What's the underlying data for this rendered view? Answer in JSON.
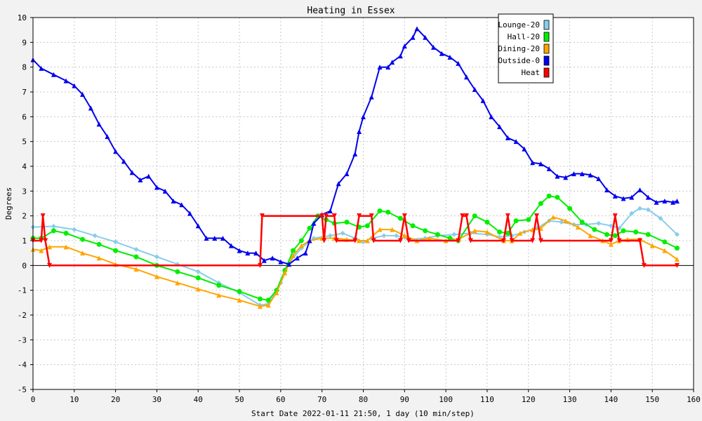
{
  "chart_data": {
    "type": "line",
    "title": "Heating in Essex",
    "xlabel": "Start Date 2022-01-11 21:50, 1 day (10 min/step)",
    "ylabel": "Degrees",
    "xlim": [
      0,
      160
    ],
    "ylim": [
      -5,
      10
    ],
    "x_ticks": [
      0,
      10,
      20,
      30,
      40,
      50,
      60,
      70,
      80,
      90,
      100,
      110,
      120,
      130,
      140,
      150,
      160
    ],
    "y_ticks": [
      -5,
      -4,
      -3,
      -2,
      -1,
      0,
      1,
      2,
      3,
      4,
      5,
      6,
      7,
      8,
      9,
      10
    ],
    "grid": true,
    "legend_position": "top-right",
    "series": [
      {
        "name": "Lounge-20",
        "color": "#87ceeb",
        "marker": "diamond",
        "points": [
          [
            0,
            1.55
          ],
          [
            5,
            1.58
          ],
          [
            10,
            1.45
          ],
          [
            15,
            1.2
          ],
          [
            20,
            0.95
          ],
          [
            25,
            0.65
          ],
          [
            30,
            0.35
          ],
          [
            35,
            0.05
          ],
          [
            40,
            -0.25
          ],
          [
            45,
            -0.7
          ],
          [
            50,
            -1.1
          ],
          [
            55,
            -1.6
          ],
          [
            57,
            -1.55
          ],
          [
            60,
            -0.7
          ],
          [
            62,
            0.1
          ],
          [
            65,
            0.7
          ],
          [
            68,
            1.1
          ],
          [
            72,
            1.2
          ],
          [
            75,
            1.3
          ],
          [
            78,
            1.1
          ],
          [
            80,
            0.95
          ],
          [
            82,
            1.1
          ],
          [
            85,
            1.2
          ],
          [
            88,
            1.2
          ],
          [
            91,
            1.05
          ],
          [
            95,
            1.1
          ],
          [
            98,
            1.2
          ],
          [
            102,
            1.25
          ],
          [
            106,
            1.3
          ],
          [
            110,
            1.25
          ],
          [
            113,
            1.15
          ],
          [
            116,
            1.2
          ],
          [
            119,
            1.35
          ],
          [
            122,
            1.5
          ],
          [
            125,
            1.8
          ],
          [
            128,
            1.75
          ],
          [
            131,
            1.65
          ],
          [
            134,
            1.65
          ],
          [
            137,
            1.7
          ],
          [
            140,
            1.6
          ],
          [
            142,
            1.5
          ],
          [
            145,
            2.1
          ],
          [
            147,
            2.3
          ],
          [
            149,
            2.25
          ],
          [
            152,
            1.9
          ],
          [
            156,
            1.25
          ]
        ]
      },
      {
        "name": "Hall-20",
        "color": "#00ee00",
        "marker": "circle",
        "points": [
          [
            0,
            1.1
          ],
          [
            2,
            1.1
          ],
          [
            5,
            1.4
          ],
          [
            8,
            1.3
          ],
          [
            12,
            1.05
          ],
          [
            16,
            0.85
          ],
          [
            20,
            0.6
          ],
          [
            25,
            0.35
          ],
          [
            30,
            0.0
          ],
          [
            35,
            -0.25
          ],
          [
            40,
            -0.5
          ],
          [
            45,
            -0.8
          ],
          [
            50,
            -1.05
          ],
          [
            55,
            -1.35
          ],
          [
            57,
            -1.4
          ],
          [
            59,
            -1.0
          ],
          [
            61,
            -0.2
          ],
          [
            63,
            0.6
          ],
          [
            65,
            1.0
          ],
          [
            67,
            1.5
          ],
          [
            69,
            2.0
          ],
          [
            71,
            1.85
          ],
          [
            73,
            1.7
          ],
          [
            76,
            1.75
          ],
          [
            79,
            1.55
          ],
          [
            81,
            1.6
          ],
          [
            84,
            2.2
          ],
          [
            86,
            2.15
          ],
          [
            89,
            1.9
          ],
          [
            92,
            1.6
          ],
          [
            95,
            1.4
          ],
          [
            98,
            1.25
          ],
          [
            101,
            1.1
          ],
          [
            103,
            1.0
          ],
          [
            107,
            2.0
          ],
          [
            110,
            1.75
          ],
          [
            113,
            1.35
          ],
          [
            115,
            1.3
          ],
          [
            117,
            1.8
          ],
          [
            120,
            1.85
          ],
          [
            123,
            2.5
          ],
          [
            125,
            2.8
          ],
          [
            127,
            2.75
          ],
          [
            130,
            2.3
          ],
          [
            133,
            1.75
          ],
          [
            136,
            1.45
          ],
          [
            139,
            1.25
          ],
          [
            141,
            1.2
          ],
          [
            143,
            1.4
          ],
          [
            146,
            1.35
          ],
          [
            149,
            1.25
          ],
          [
            153,
            0.95
          ],
          [
            156,
            0.7
          ]
        ]
      },
      {
        "name": "Dining-20",
        "color": "#ffa500",
        "marker": "triangle",
        "points": [
          [
            0,
            0.65
          ],
          [
            2,
            0.6
          ],
          [
            4,
            0.75
          ],
          [
            8,
            0.75
          ],
          [
            12,
            0.5
          ],
          [
            16,
            0.3
          ],
          [
            20,
            0.05
          ],
          [
            25,
            -0.15
          ],
          [
            30,
            -0.45
          ],
          [
            35,
            -0.7
          ],
          [
            40,
            -0.95
          ],
          [
            45,
            -1.2
          ],
          [
            50,
            -1.4
          ],
          [
            55,
            -1.65
          ],
          [
            57,
            -1.6
          ],
          [
            59,
            -1.1
          ],
          [
            61,
            -0.3
          ],
          [
            63,
            0.4
          ],
          [
            65,
            0.8
          ],
          [
            67,
            1.0
          ],
          [
            70,
            1.1
          ],
          [
            73,
            1.1
          ],
          [
            76,
            1.05
          ],
          [
            79,
            1.0
          ],
          [
            81,
            1.0
          ],
          [
            84,
            1.45
          ],
          [
            87,
            1.45
          ],
          [
            90,
            1.2
          ],
          [
            93,
            1.0
          ],
          [
            96,
            1.1
          ],
          [
            100,
            1.0
          ],
          [
            103,
            1.05
          ],
          [
            107,
            1.4
          ],
          [
            110,
            1.35
          ],
          [
            114,
            1.0
          ],
          [
            116,
            1.0
          ],
          [
            118,
            1.3
          ],
          [
            121,
            1.45
          ],
          [
            123,
            1.5
          ],
          [
            126,
            1.95
          ],
          [
            129,
            1.8
          ],
          [
            132,
            1.55
          ],
          [
            135,
            1.2
          ],
          [
            138,
            1.0
          ],
          [
            140,
            0.85
          ],
          [
            142,
            1.0
          ],
          [
            144,
            1.05
          ],
          [
            147,
            1.05
          ],
          [
            150,
            0.8
          ],
          [
            153,
            0.6
          ],
          [
            156,
            0.25
          ]
        ]
      },
      {
        "name": "Outside-0",
        "color": "#0000ee",
        "marker": "triangle",
        "points": [
          [
            0,
            8.3
          ],
          [
            2,
            7.95
          ],
          [
            5,
            7.7
          ],
          [
            8,
            7.45
          ],
          [
            10,
            7.25
          ],
          [
            12,
            6.9
          ],
          [
            14,
            6.35
          ],
          [
            16,
            5.7
          ],
          [
            18,
            5.2
          ],
          [
            20,
            4.6
          ],
          [
            22,
            4.2
          ],
          [
            24,
            3.75
          ],
          [
            26,
            3.45
          ],
          [
            28,
            3.6
          ],
          [
            30,
            3.15
          ],
          [
            32,
            3.0
          ],
          [
            34,
            2.6
          ],
          [
            36,
            2.45
          ],
          [
            38,
            2.1
          ],
          [
            40,
            1.6
          ],
          [
            42,
            1.1
          ],
          [
            44,
            1.1
          ],
          [
            46,
            1.1
          ],
          [
            48,
            0.8
          ],
          [
            50,
            0.6
          ],
          [
            52,
            0.5
          ],
          [
            54,
            0.5
          ],
          [
            56,
            0.2
          ],
          [
            58,
            0.3
          ],
          [
            60,
            0.15
          ],
          [
            62,
            0.05
          ],
          [
            64,
            0.3
          ],
          [
            66,
            0.5
          ],
          [
            67,
            1.0
          ],
          [
            68,
            1.7
          ],
          [
            70,
            2.05
          ],
          [
            72,
            2.2
          ],
          [
            74,
            3.3
          ],
          [
            76,
            3.7
          ],
          [
            78,
            4.5
          ],
          [
            79,
            5.4
          ],
          [
            80,
            6.0
          ],
          [
            82,
            6.8
          ],
          [
            84,
            8.0
          ],
          [
            86,
            8.0
          ],
          [
            87,
            8.2
          ],
          [
            89,
            8.45
          ],
          [
            90,
            8.85
          ],
          [
            92,
            9.2
          ],
          [
            93,
            9.55
          ],
          [
            95,
            9.2
          ],
          [
            97,
            8.8
          ],
          [
            99,
            8.55
          ],
          [
            101,
            8.4
          ],
          [
            103,
            8.15
          ],
          [
            105,
            7.6
          ],
          [
            107,
            7.1
          ],
          [
            109,
            6.65
          ],
          [
            111,
            6.0
          ],
          [
            113,
            5.6
          ],
          [
            115,
            5.15
          ],
          [
            117,
            5.0
          ],
          [
            119,
            4.7
          ],
          [
            121,
            4.15
          ],
          [
            123,
            4.1
          ],
          [
            125,
            3.9
          ],
          [
            127,
            3.6
          ],
          [
            129,
            3.55
          ],
          [
            131,
            3.7
          ],
          [
            133,
            3.7
          ],
          [
            135,
            3.65
          ],
          [
            137,
            3.5
          ],
          [
            139,
            3.05
          ],
          [
            141,
            2.8
          ],
          [
            143,
            2.7
          ],
          [
            145,
            2.75
          ],
          [
            147,
            3.05
          ],
          [
            149,
            2.75
          ],
          [
            151,
            2.55
          ],
          [
            153,
            2.6
          ],
          [
            155,
            2.55
          ],
          [
            156,
            2.6
          ]
        ]
      },
      {
        "name": "Heat",
        "color": "#ff0000",
        "marker": "triangle-down",
        "points": [
          [
            0,
            1
          ],
          [
            2,
            1
          ],
          [
            2.4,
            2
          ],
          [
            3,
            1
          ],
          [
            4,
            0
          ],
          [
            55,
            0
          ],
          [
            55.5,
            2
          ],
          [
            70,
            2
          ],
          [
            70.5,
            1
          ],
          [
            71,
            2
          ],
          [
            73,
            2
          ],
          [
            73.5,
            1
          ],
          [
            78,
            1
          ],
          [
            79,
            2
          ],
          [
            82,
            2
          ],
          [
            82.5,
            1
          ],
          [
            89,
            1
          ],
          [
            90,
            2
          ],
          [
            91,
            1
          ],
          [
            103,
            1
          ],
          [
            104,
            2
          ],
          [
            105,
            2
          ],
          [
            106,
            1
          ],
          [
            114,
            1
          ],
          [
            115,
            2
          ],
          [
            116,
            1
          ],
          [
            121,
            1
          ],
          [
            122,
            2
          ],
          [
            123,
            1
          ],
          [
            140,
            1
          ],
          [
            141,
            2
          ],
          [
            142,
            1
          ],
          [
            147,
            1
          ],
          [
            148,
            0
          ],
          [
            156,
            0
          ]
        ]
      }
    ]
  }
}
